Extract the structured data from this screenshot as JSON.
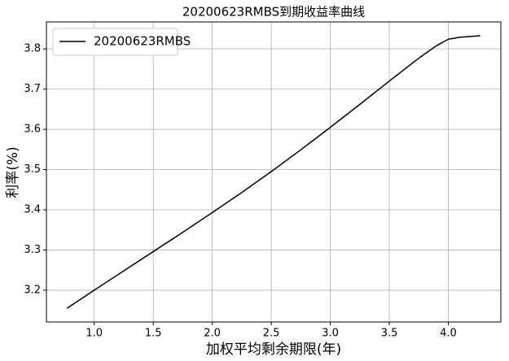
{
  "chart_data": {
    "type": "line",
    "title": "20200623RMBS到期收益率曲线",
    "xlabel": "加权平均剩余期限(年)",
    "ylabel": "利率(%)",
    "x": [
      0.77,
      1.0,
      1.25,
      1.5,
      1.75,
      2.0,
      2.25,
      2.5,
      2.75,
      3.0,
      3.25,
      3.5,
      3.75,
      3.9,
      4.0,
      4.1,
      4.2,
      4.27
    ],
    "series": [
      {
        "name": "20200623RMBS",
        "color": "#000000",
        "values": [
          3.155,
          3.2,
          3.248,
          3.296,
          3.344,
          3.393,
          3.443,
          3.495,
          3.549,
          3.605,
          3.662,
          3.72,
          3.777,
          3.808,
          3.824,
          3.829,
          3.831,
          3.833
        ]
      }
    ],
    "xlim": [
      0.595,
      4.445
    ],
    "ylim": [
      3.121,
      3.867
    ],
    "xticks": [
      {
        "value": 1,
        "label": "1.0"
      },
      1.5,
      {
        "value": 2,
        "label": "2.0"
      },
      2.5,
      {
        "value": 3,
        "label": "3.0"
      },
      3.5,
      {
        "value": 4,
        "label": "4.0"
      }
    ],
    "yticks": [
      3.2,
      3.3,
      3.4,
      3.5,
      3.6,
      3.7,
      3.8
    ],
    "grid": true,
    "legend": "upper-left"
  }
}
